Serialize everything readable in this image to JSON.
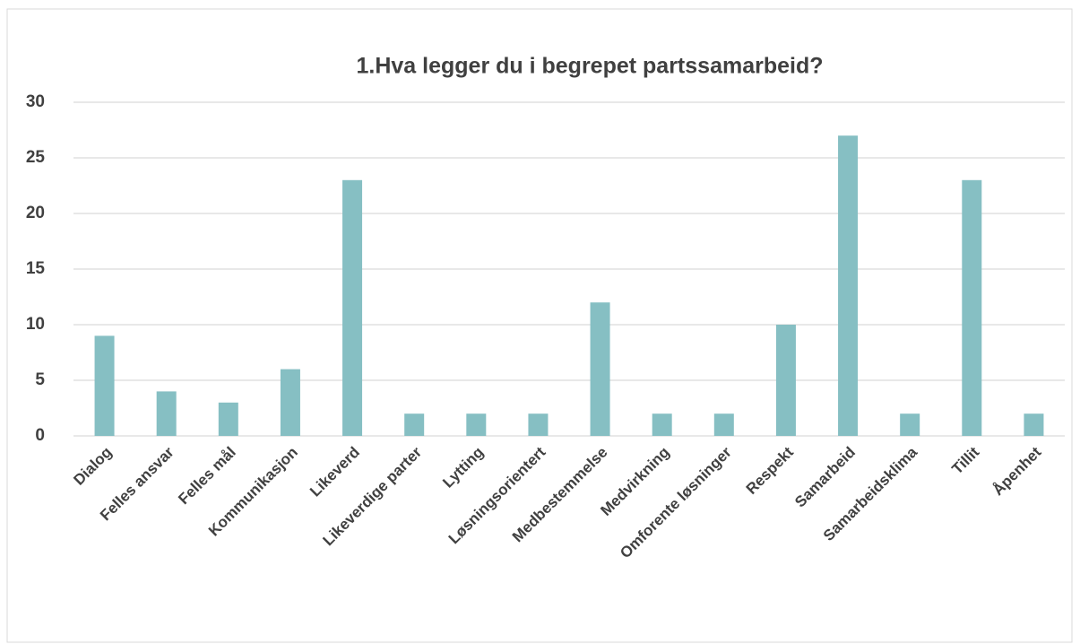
{
  "chart_data": {
    "type": "bar",
    "title": "1.Hva legger du i begrepet partssamarbeid?",
    "categories": [
      "Dialog",
      "Felles ansvar",
      "Felles mål",
      "Kommunikasjon",
      "Likeverd",
      "Likeverdige parter",
      "Lytting",
      "Løsningsorientert",
      "Medbestemmelse",
      "Medvirkning",
      "Omforente løsninger",
      "Respekt",
      "Samarbeid",
      "Samarbeidsklima",
      "Tillit",
      "Åpenhet"
    ],
    "values": [
      9,
      4,
      3,
      6,
      23,
      2,
      2,
      2,
      12,
      2,
      2,
      10,
      27,
      2,
      23,
      2
    ],
    "color": "#86bfc3",
    "ylim": [
      0,
      30
    ],
    "yticks": [
      0,
      5,
      10,
      15,
      20,
      25,
      30
    ],
    "grid": true
  }
}
